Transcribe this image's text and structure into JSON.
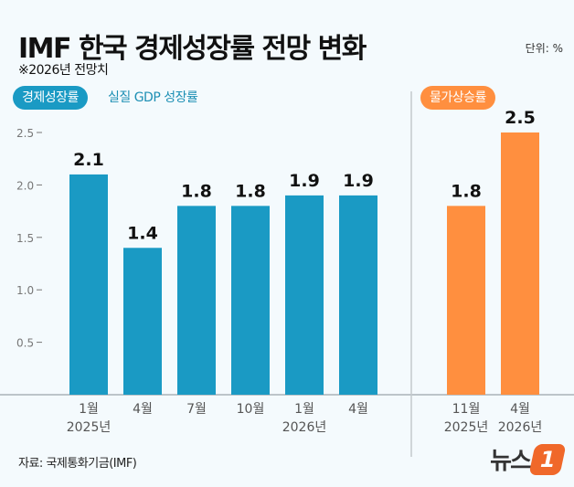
{
  "title": "IMF 한국 경제성장률 전망 변화",
  "subtitle": "※2026년 전망치",
  "unit": "단위: %",
  "source": "자료: 국제통화기금(IMF)",
  "logo_text": "뉴스1",
  "chart_data": [
    {
      "type": "bar",
      "legend_badge": "경제성장률",
      "legend_text": "실질 GDP 성장률",
      "color": "#1a9ac4",
      "categories": [
        [
          "1월",
          "2025년"
        ],
        [
          "4월",
          ""
        ],
        [
          "7월",
          ""
        ],
        [
          "10월",
          ""
        ],
        [
          "1월",
          "2026년"
        ],
        [
          "4월",
          ""
        ]
      ],
      "values": [
        2.1,
        1.4,
        1.8,
        1.8,
        1.9,
        1.9
      ],
      "data_labels": [
        "2.1",
        "1.4",
        "1.8",
        "1.8",
        "1.9",
        "1.9"
      ],
      "yticks": [
        "0.5",
        "1.0",
        "1.5",
        "2.0",
        "2.5"
      ],
      "ylim": [
        0,
        2.5
      ]
    },
    {
      "type": "bar",
      "legend_badge": "물가상승률",
      "color": "#ff8f3f",
      "categories": [
        [
          "11월",
          "2025년"
        ],
        [
          "4월",
          "2026년"
        ]
      ],
      "values": [
        1.8,
        2.5
      ],
      "data_labels": [
        "1.8",
        "2.5"
      ],
      "ylim": [
        0,
        2.5
      ]
    }
  ]
}
